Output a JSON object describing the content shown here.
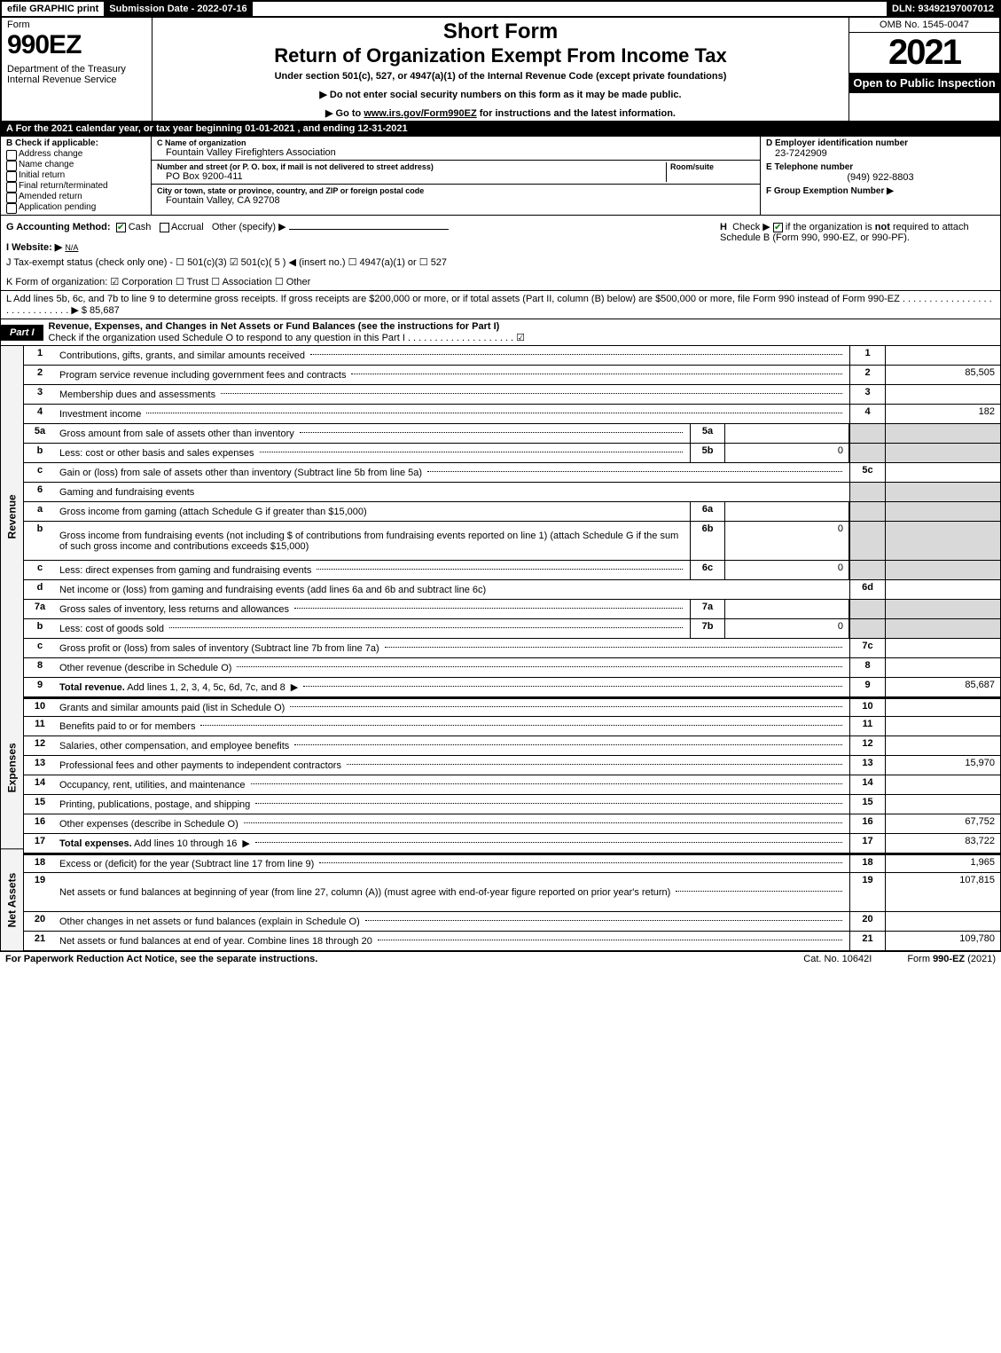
{
  "topbar": {
    "efile": "efile GRAPHIC print",
    "subdate": "Submission Date - 2022-07-16",
    "dln": "DLN: 93492197007012"
  },
  "header": {
    "form": "Form",
    "formnum": "990EZ",
    "dept": "Department of the Treasury\nInternal Revenue Service",
    "short": "Short Form",
    "title": "Return of Organization Exempt From Income Tax",
    "sub": "Under section 501(c), 527, or 4947(a)(1) of the Internal Revenue Code (except private foundations)",
    "arrow1": "▶ Do not enter social security numbers on this form as it may be made public.",
    "arrow2": "▶ Go to www.irs.gov/Form990EZ for instructions and the latest information.",
    "omb": "OMB No. 1545-0047",
    "year": "2021",
    "open": "Open to Public Inspection"
  },
  "lineA": "A  For the 2021 calendar year, or tax year beginning 01-01-2021 , and ending 12-31-2021",
  "colB": {
    "hdr": "B  Check if applicable:",
    "items": [
      "Address change",
      "Name change",
      "Initial return",
      "Final return/terminated",
      "Amended return",
      "Application pending"
    ]
  },
  "colC": {
    "name_lbl": "C Name of organization",
    "name": "Fountain Valley Firefighters Association",
    "addr_lbl": "Number and street (or P. O. box, if mail is not delivered to street address)",
    "room_lbl": "Room/suite",
    "addr": "PO Box 9200-411",
    "city_lbl": "City or town, state or province, country, and ZIP or foreign postal code",
    "city": "Fountain Valley, CA  92708"
  },
  "colDEF": {
    "d_lbl": "D Employer identification number",
    "d_val": "23-7242909",
    "e_lbl": "E Telephone number",
    "e_val": "(949) 922-8803",
    "f_lbl": "F Group Exemption Number  ▶"
  },
  "rowG": {
    "g": "G Accounting Method:",
    "cash": "Cash",
    "accrual": "Accrual",
    "other": "Other (specify) ▶",
    "h": "H  Check ▶  ☐  if the organization is not required to attach Schedule B (Form 990, 990-EZ, or 990-PF)."
  },
  "rowI": "I Website: ▶",
  "rowI_val": "N/A",
  "rowJ": "J Tax-exempt status (check only one) - ☐ 501(c)(3)  ☑ 501(c)( 5 ) ◀ (insert no.)  ☐ 4947(a)(1) or  ☐ 527",
  "rowK": "K Form of organization:   ☑ Corporation   ☐ Trust   ☐ Association   ☐ Other",
  "rowL": "L Add lines 5b, 6c, and 7b to line 9 to determine gross receipts. If gross receipts are $200,000 or more, or if total assets (Part II, column (B) below) are $500,000 or more, file Form 990 instead of Form 990-EZ . . . . . . . . . . . . . . . . . . . . . . . . . . . . . ▶ $ 85,687",
  "part1": {
    "tag": "Part I",
    "title": "Revenue, Expenses, and Changes in Net Assets or Fund Balances (see the instructions for Part I)",
    "sub": "Check if the organization used Schedule O to respond to any question in this Part I . . . . . . . . . . . . . . . . . . . . ☑"
  },
  "sidebar": [
    "Revenue",
    "Expenses",
    "Net Assets"
  ],
  "lines": [
    {
      "n": "1",
      "d": "Contributions, gifts, grants, and similar amounts received",
      "dots": true,
      "rn": "1",
      "rv": ""
    },
    {
      "n": "2",
      "d": "Program service revenue including government fees and contracts",
      "dots": true,
      "rn": "2",
      "rv": "85,505"
    },
    {
      "n": "3",
      "d": "Membership dues and assessments",
      "dots": true,
      "rn": "3",
      "rv": ""
    },
    {
      "n": "4",
      "d": "Investment income",
      "dots": true,
      "rn": "4",
      "rv": "182"
    },
    {
      "n": "5a",
      "d": "Gross amount from sale of assets other than inventory",
      "dots": true,
      "mb": "5a",
      "mv": "",
      "grey": true
    },
    {
      "n": "b",
      "d": "Less: cost or other basis and sales expenses",
      "dots": true,
      "mb": "5b",
      "mv": "0",
      "grey": true
    },
    {
      "n": "c",
      "d": "Gain or (loss) from sale of assets other than inventory (Subtract line 5b from line 5a)",
      "dots": true,
      "rn": "5c",
      "rv": ""
    },
    {
      "n": "6",
      "d": "Gaming and fundraising events",
      "grey": true
    },
    {
      "n": "a",
      "d": "Gross income from gaming (attach Schedule G if greater than $15,000)",
      "mb": "6a",
      "mv": "",
      "grey": true
    },
    {
      "n": "b",
      "d": "Gross income from fundraising events (not including $                of contributions from fundraising events reported on line 1) (attach Schedule G if the sum of such gross income and contributions exceeds $15,000)",
      "mb": "6b",
      "mv": "0",
      "grey": true,
      "tall": true
    },
    {
      "n": "c",
      "d": "Less: direct expenses from gaming and fundraising events",
      "dots": true,
      "mb": "6c",
      "mv": "0",
      "grey": true
    },
    {
      "n": "d",
      "d": "Net income or (loss) from gaming and fundraising events (add lines 6a and 6b and subtract line 6c)",
      "rn": "6d",
      "rv": ""
    },
    {
      "n": "7a",
      "d": "Gross sales of inventory, less returns and allowances",
      "dots": true,
      "mb": "7a",
      "mv": "",
      "grey": true
    },
    {
      "n": "b",
      "d": "Less: cost of goods sold",
      "dots": true,
      "mb": "7b",
      "mv": "0",
      "grey": true
    },
    {
      "n": "c",
      "d": "Gross profit or (loss) from sales of inventory (Subtract line 7b from line 7a)",
      "dots": true,
      "rn": "7c",
      "rv": ""
    },
    {
      "n": "8",
      "d": "Other revenue (describe in Schedule O)",
      "dots": true,
      "rn": "8",
      "rv": ""
    },
    {
      "n": "9",
      "d": "Total revenue. Add lines 1, 2, 3, 4, 5c, 6d, 7c, and 8",
      "dots": true,
      "rn": "9",
      "rv": "85,687",
      "bold": true,
      "arr": true,
      "sec": "rev"
    }
  ],
  "lines2": [
    {
      "n": "10",
      "d": "Grants and similar amounts paid (list in Schedule O)",
      "dots": true,
      "rn": "10",
      "rv": ""
    },
    {
      "n": "11",
      "d": "Benefits paid to or for members",
      "dots": true,
      "rn": "11",
      "rv": ""
    },
    {
      "n": "12",
      "d": "Salaries, other compensation, and employee benefits",
      "dots": true,
      "rn": "12",
      "rv": ""
    },
    {
      "n": "13",
      "d": "Professional fees and other payments to independent contractors",
      "dots": true,
      "rn": "13",
      "rv": "15,970"
    },
    {
      "n": "14",
      "d": "Occupancy, rent, utilities, and maintenance",
      "dots": true,
      "rn": "14",
      "rv": ""
    },
    {
      "n": "15",
      "d": "Printing, publications, postage, and shipping",
      "dots": true,
      "rn": "15",
      "rv": ""
    },
    {
      "n": "16",
      "d": "Other expenses (describe in Schedule O)",
      "dots": true,
      "rn": "16",
      "rv": "67,752"
    },
    {
      "n": "17",
      "d": "Total expenses. Add lines 10 through 16",
      "dots": true,
      "rn": "17",
      "rv": "83,722",
      "bold": true,
      "arr": true,
      "sec": "exp"
    }
  ],
  "lines3": [
    {
      "n": "18",
      "d": "Excess or (deficit) for the year (Subtract line 17 from line 9)",
      "dots": true,
      "rn": "18",
      "rv": "1,965"
    },
    {
      "n": "19",
      "d": "Net assets or fund balances at beginning of year (from line 27, column (A)) (must agree with end-of-year figure reported on prior year's return)",
      "dots": true,
      "rn": "19",
      "rv": "107,815",
      "tall": true
    },
    {
      "n": "20",
      "d": "Other changes in net assets or fund balances (explain in Schedule O)",
      "dots": true,
      "rn": "20",
      "rv": ""
    },
    {
      "n": "21",
      "d": "Net assets or fund balances at end of year. Combine lines 18 through 20",
      "dots": true,
      "rn": "21",
      "rv": "109,780",
      "sec": "net"
    }
  ],
  "footer": {
    "l": "For Paperwork Reduction Act Notice, see the separate instructions.",
    "m": "Cat. No. 10642I",
    "r": "Form 990-EZ (2021)"
  }
}
